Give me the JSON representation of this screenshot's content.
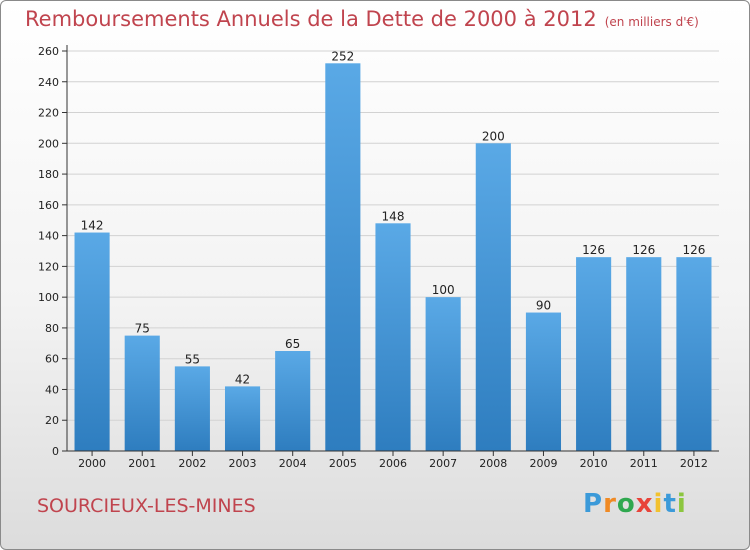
{
  "title": "Remboursements Annuels de la Dette de 2000 à 2012",
  "subtitle": "(en milliers d'€)",
  "commune": "SOURCIEUX-LES-MINES",
  "logo": {
    "letters": [
      "P",
      "r",
      "o",
      "x",
      "i",
      "t",
      "i"
    ],
    "colors": [
      "#3b9ad9",
      "#f08a24",
      "#2fa84f",
      "#e8443a",
      "#f2c12e",
      "#3b9ad9",
      "#8cc63f"
    ]
  },
  "colors": {
    "bar": "#5aa9e6",
    "bar_dark": "#2e7dbf",
    "title": "#c0444e"
  },
  "chart_data": {
    "type": "bar",
    "title": "Remboursements Annuels de la Dette de 2000 à 2012",
    "subtitle": "(en milliers d'€)",
    "categories": [
      "2000",
      "2001",
      "2002",
      "2003",
      "2004",
      "2005",
      "2006",
      "2007",
      "2008",
      "2009",
      "2010",
      "2011",
      "2012"
    ],
    "values": [
      142,
      75,
      55,
      42,
      65,
      252,
      148,
      100,
      200,
      90,
      126,
      126,
      126
    ],
    "ylim": [
      0,
      260
    ],
    "yticks": [
      0,
      20,
      40,
      60,
      80,
      100,
      120,
      140,
      160,
      180,
      200,
      220,
      240,
      260
    ],
    "grid": true,
    "xlabel": "",
    "ylabel": ""
  }
}
